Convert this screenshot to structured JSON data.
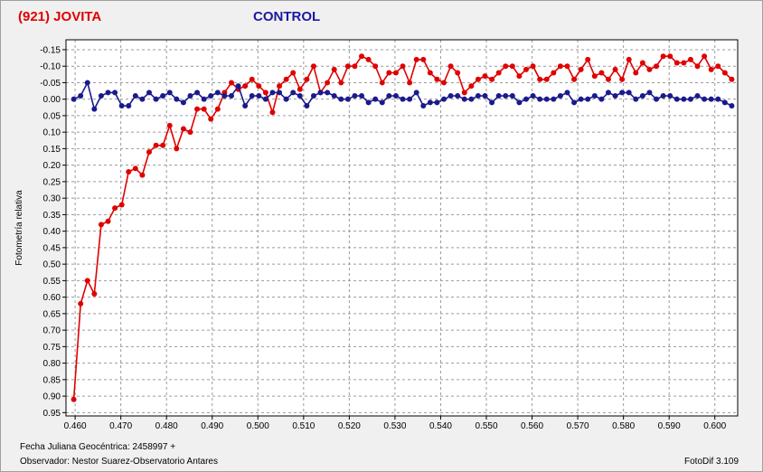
{
  "header": {
    "target_title": "(921) JOVITA",
    "control_title": "CONTROL"
  },
  "footer": {
    "date_line": "Fecha Juliana Geocéntrica: 2458997 +",
    "observer_line": "Observador: Nestor Suarez-Observatorio Antares",
    "version": "FotoDif 3.109"
  },
  "colors": {
    "target": "#e00000",
    "control": "#1a1a8c",
    "grid": "#9a9a9a",
    "plot_bg": "#ffffff"
  },
  "chart_data": {
    "type": "line",
    "ylabel": "Fotometría relativa",
    "xlim": [
      0.458,
      0.605
    ],
    "ylim": [
      -0.18,
      0.96
    ],
    "y_inverted": true,
    "grid": true,
    "x_ticks": [
      "0.460",
      "0.470",
      "0.480",
      "0.490",
      "0.500",
      "0.510",
      "0.520",
      "0.530",
      "0.540",
      "0.550",
      "0.560",
      "0.570",
      "0.580",
      "0.590",
      "0.600"
    ],
    "y_ticks": [
      "-0.15",
      "-0.10",
      "-0.05",
      "0.00",
      "0.05",
      "0.10",
      "0.15",
      "0.20",
      "0.25",
      "0.30",
      "0.35",
      "0.40",
      "0.45",
      "0.50",
      "0.55",
      "0.60",
      "0.65",
      "0.70",
      "0.75",
      "0.80",
      "0.85",
      "0.90",
      "0.95"
    ],
    "series": [
      {
        "role": "target",
        "x": [
          0.4597,
          0.4612,
          0.4627,
          0.4642,
          0.4657,
          0.4672,
          0.4687,
          0.4702,
          0.4717,
          0.4732,
          0.4747,
          0.4762,
          0.4777,
          0.4792,
          0.4807,
          0.4822,
          0.4837,
          0.4852,
          0.4867,
          0.4882,
          0.4897,
          0.4912,
          0.4927,
          0.4942,
          0.4957,
          0.4972,
          0.4987,
          0.5002,
          0.5017,
          0.5032,
          0.5047,
          0.5062,
          0.5077,
          0.5092,
          0.5107,
          0.5122,
          0.5137,
          0.5152,
          0.5167,
          0.5182,
          0.5197,
          0.5212,
          0.5227,
          0.5242,
          0.5257,
          0.5272,
          0.5287,
          0.5302,
          0.5317,
          0.5332,
          0.5347,
          0.5362,
          0.5377,
          0.5392,
          0.5407,
          0.5422,
          0.5437,
          0.5452,
          0.5467,
          0.5482,
          0.5497,
          0.5512,
          0.5527,
          0.5542,
          0.5557,
          0.5572,
          0.5587,
          0.5602,
          0.5617,
          0.5632,
          0.5647,
          0.5662,
          0.5677,
          0.5692,
          0.5707,
          0.5722,
          0.5737,
          0.5752,
          0.5767,
          0.5782,
          0.5797,
          0.5812,
          0.5827,
          0.5842,
          0.5857,
          0.5872,
          0.5887,
          0.5902,
          0.5917,
          0.5932,
          0.5947,
          0.5962,
          0.5977,
          0.5992,
          0.6007,
          0.6022,
          0.6037
        ],
        "y": [
          0.91,
          0.62,
          0.55,
          0.59,
          0.38,
          0.37,
          0.33,
          0.32,
          0.22,
          0.21,
          0.23,
          0.16,
          0.14,
          0.14,
          0.08,
          0.15,
          0.09,
          0.1,
          0.03,
          0.03,
          0.06,
          0.03,
          -0.02,
          -0.05,
          -0.03,
          -0.04,
          -0.06,
          -0.04,
          -0.02,
          0.04,
          -0.04,
          -0.06,
          -0.08,
          -0.03,
          -0.06,
          -0.1,
          -0.02,
          -0.05,
          -0.09,
          -0.05,
          -0.1,
          -0.1,
          -0.13,
          -0.12,
          -0.1,
          -0.05,
          -0.08,
          -0.08,
          -0.1,
          -0.05,
          -0.12,
          -0.12,
          -0.08,
          -0.06,
          -0.05,
          -0.1,
          -0.08,
          -0.02,
          -0.04,
          -0.06,
          -0.07,
          -0.06,
          -0.08,
          -0.1,
          -0.1,
          -0.07,
          -0.09,
          -0.1,
          -0.06,
          -0.06,
          -0.08,
          -0.1,
          -0.1,
          -0.06,
          -0.09,
          -0.12,
          -0.07,
          -0.08,
          -0.06,
          -0.09,
          -0.06,
          -0.12,
          -0.08,
          -0.11,
          -0.09,
          -0.1,
          -0.13,
          -0.13,
          -0.11,
          -0.11,
          -0.12,
          -0.1,
          -0.13,
          -0.09,
          -0.1,
          -0.08,
          -0.06
        ],
        "note_omit": null
      },
      {
        "role": "control",
        "x": [
          0.4597,
          0.4612,
          0.4627,
          0.4642,
          0.4657,
          0.4672,
          0.4687,
          0.4702,
          0.4717,
          0.4732,
          0.4747,
          0.4762,
          0.4777,
          0.4792,
          0.4807,
          0.4822,
          0.4837,
          0.4852,
          0.4867,
          0.4882,
          0.4897,
          0.4912,
          0.4927,
          0.4942,
          0.4957,
          0.4972,
          0.4987,
          0.5002,
          0.5017,
          0.5032,
          0.5047,
          0.5062,
          0.5077,
          0.5092,
          0.5107,
          0.5122,
          0.5137,
          0.5152,
          0.5167,
          0.5182,
          0.5197,
          0.5212,
          0.5227,
          0.5242,
          0.5257,
          0.5272,
          0.5287,
          0.5302,
          0.5317,
          0.5332,
          0.5347,
          0.5362,
          0.5377,
          0.5392,
          0.5407,
          0.5422,
          0.5437,
          0.5452,
          0.5467,
          0.5482,
          0.5497,
          0.5512,
          0.5527,
          0.5542,
          0.5557,
          0.5572,
          0.5587,
          0.5602,
          0.5617,
          0.5632,
          0.5647,
          0.5662,
          0.5677,
          0.5692,
          0.5707,
          0.5722,
          0.5737,
          0.5752,
          0.5767,
          0.5782,
          0.5797,
          0.5812,
          0.5827,
          0.5842,
          0.5857,
          0.5872,
          0.5887,
          0.5902,
          0.5917,
          0.5932,
          0.5947,
          0.5962,
          0.5977,
          0.5992,
          0.6007,
          0.6022,
          0.6037
        ],
        "y": [
          0.0,
          -0.01,
          -0.05,
          0.03,
          -0.01,
          -0.02,
          -0.02,
          0.02,
          0.02,
          -0.01,
          0.0,
          -0.02,
          0.0,
          -0.01,
          -0.02,
          0.0,
          0.01,
          -0.01,
          -0.02,
          0.0,
          -0.01,
          -0.02,
          -0.01,
          -0.01,
          -0.04,
          0.02,
          -0.01,
          -0.01,
          0.0,
          -0.02,
          -0.02,
          0.0,
          -0.02,
          -0.01,
          0.02,
          -0.01,
          -0.02,
          -0.02,
          -0.01,
          0.0,
          0.0,
          -0.01,
          -0.01,
          0.01,
          0.0,
          0.01,
          -0.01,
          -0.01,
          0.0,
          0.0,
          -0.02,
          0.02,
          0.01,
          0.01,
          0.0,
          -0.01,
          -0.01,
          0.0,
          0.0,
          -0.01,
          -0.01,
          0.01,
          -0.01,
          -0.01,
          -0.01,
          0.01,
          0.0,
          -0.01,
          0.0,
          0.0,
          0.0,
          -0.01,
          -0.02,
          0.01,
          0.0,
          0.0,
          -0.01,
          0.0,
          -0.02,
          -0.01,
          -0.02,
          -0.02,
          0.0,
          -0.01,
          -0.02,
          0.0,
          -0.01,
          -0.01,
          0.0,
          0.0,
          0.0,
          -0.01,
          0.0,
          0.0,
          0.0,
          0.01,
          0.02
        ],
        "note_omit": null
      }
    ]
  }
}
